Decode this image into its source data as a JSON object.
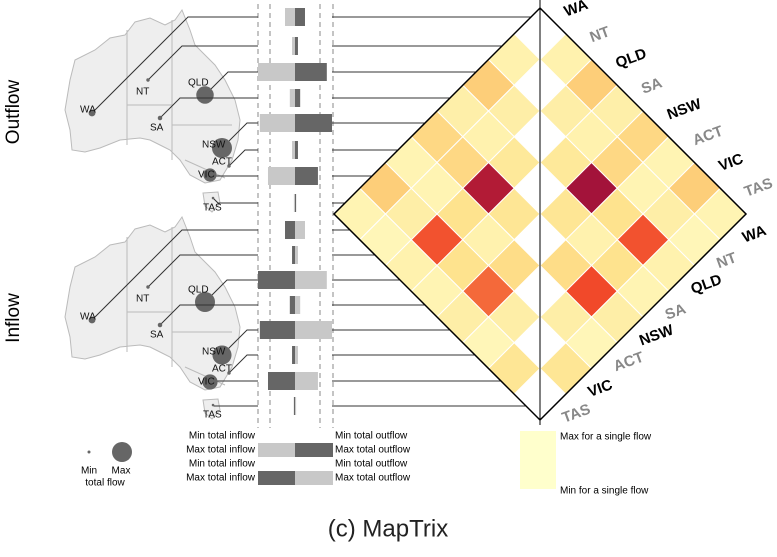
{
  "sections": [
    "Outflow",
    "Inflow"
  ],
  "states": [
    "WA",
    "NT",
    "QLD",
    "SA",
    "NSW",
    "ACT",
    "VIC",
    "TAS"
  ],
  "total_inflow": [
    0.27,
    0.08,
    1.0,
    0.14,
    0.95,
    0.08,
    0.73,
    0.03
  ],
  "total_outflow": [
    0.27,
    0.08,
    0.86,
    0.14,
    1.0,
    0.08,
    0.62,
    0.03
  ],
  "matrix": {
    "intensity": [
      [
        null,
        0.12,
        0.35,
        0.14,
        0.3,
        0.1,
        0.35,
        0.1
      ],
      [
        0.12,
        null,
        0.15,
        0.12,
        0.3,
        0.1,
        0.15,
        0.08
      ],
      [
        0.35,
        0.15,
        null,
        0.2,
        0.95,
        0.25,
        0.7,
        0.12
      ],
      [
        0.14,
        0.12,
        0.2,
        null,
        0.22,
        0.12,
        0.25,
        0.1
      ],
      [
        0.3,
        0.3,
        1.0,
        0.22,
        null,
        0.28,
        0.65,
        0.15
      ],
      [
        0.1,
        0.1,
        0.25,
        0.12,
        0.28,
        null,
        0.15,
        0.08
      ],
      [
        0.35,
        0.15,
        0.7,
        0.25,
        0.72,
        0.15,
        null,
        0.22
      ],
      [
        0.1,
        0.08,
        0.12,
        0.1,
        0.15,
        0.08,
        0.22,
        null
      ]
    ],
    "colormap": [
      "#ffffcc",
      "#fee38e",
      "#fcae5a",
      "#ef3b24",
      "#a3133a"
    ]
  },
  "legend": {
    "size": {
      "min": "Min",
      "max": "Max",
      "caption": "total flow"
    },
    "bars_left": [
      "Min total inflow",
      "Max total inflow",
      "Min total inflow",
      "Max total inflow"
    ],
    "bars_right": [
      "Min total outflow",
      "Max total outflow",
      "Min total outflow",
      "Max total outflow"
    ],
    "color_max": "Max for a single flow",
    "color_min": "Min for a single flow"
  },
  "caption": "(c) MapTrix"
}
